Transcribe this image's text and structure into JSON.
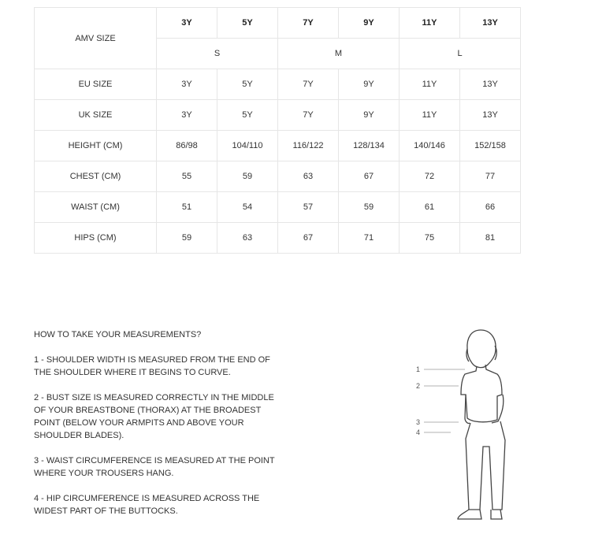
{
  "table": {
    "amv_label": "AMV SIZE",
    "sizes": [
      "3Y",
      "5Y",
      "7Y",
      "9Y",
      "11Y",
      "13Y"
    ],
    "groups": [
      "S",
      "M",
      "L"
    ],
    "rows": [
      {
        "label": "EU SIZE",
        "values": [
          "3Y",
          "5Y",
          "7Y",
          "9Y",
          "11Y",
          "13Y"
        ]
      },
      {
        "label": "UK SIZE",
        "values": [
          "3Y",
          "5Y",
          "7Y",
          "9Y",
          "11Y",
          "13Y"
        ]
      },
      {
        "label": "HEIGHT (CM)",
        "values": [
          "86/98",
          "104/110",
          "116/122",
          "128/134",
          "140/146",
          "152/158"
        ]
      },
      {
        "label": "CHEST (CM)",
        "values": [
          "55",
          "59",
          "63",
          "67",
          "72",
          "77"
        ]
      },
      {
        "label": "WAIST (CM)",
        "values": [
          "51",
          "54",
          "57",
          "59",
          "61",
          "66"
        ]
      },
      {
        "label": "HIPS (CM)",
        "values": [
          "59",
          "63",
          "67",
          "71",
          "75",
          "81"
        ]
      }
    ]
  },
  "guide": {
    "title": "HOW TO TAKE YOUR MEASUREMENTS?",
    "steps": [
      "1 - SHOULDER WIDTH IS MEASURED FROM THE END OF THE SHOULDER WHERE IT BEGINS TO CURVE.",
      "2 - BUST SIZE IS MEASURED CORRECTLY IN THE MIDDLE OF YOUR BREASTBONE (THORAX) AT THE BROADEST POINT (BELOW YOUR ARMPITS AND ABOVE YOUR SHOULDER BLADES).",
      "3 - WAIST CIRCUMFERENCE IS MEASURED AT THE POINT WHERE YOUR TROUSERS HANG.",
      "4 - HIP CIRCUMFERENCE IS MEASURED ACROSS THE WIDEST PART OF THE BUTTOCKS."
    ]
  },
  "figure": {
    "markers": [
      "1",
      "2",
      "3",
      "4"
    ]
  }
}
